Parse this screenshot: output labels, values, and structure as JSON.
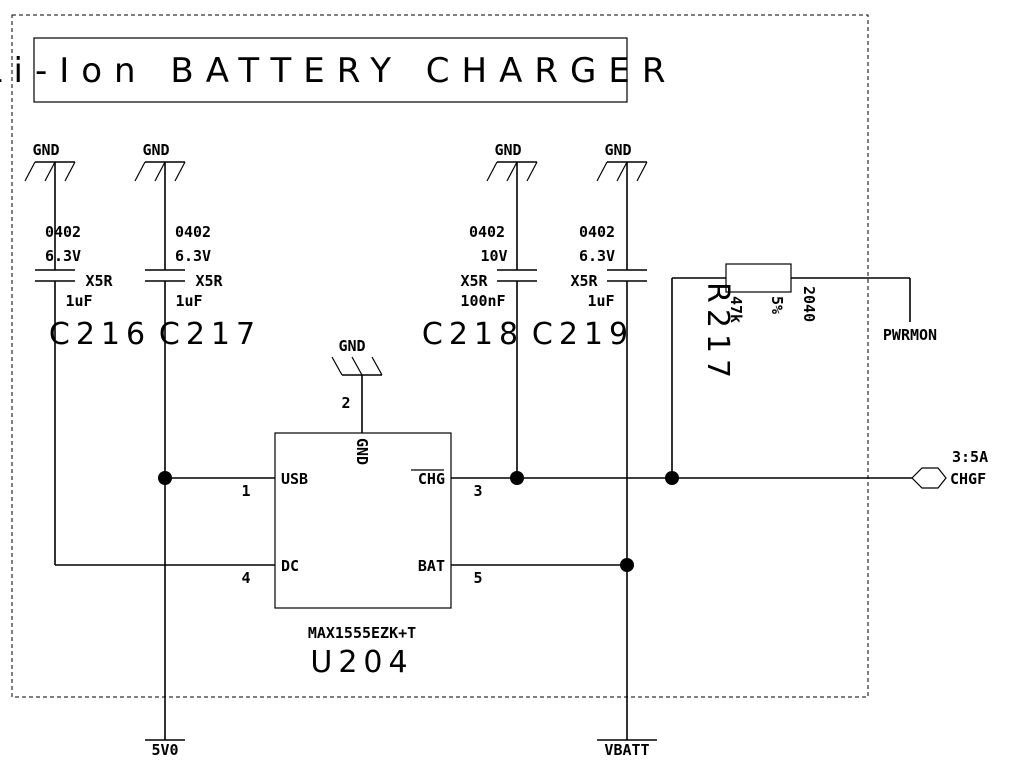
{
  "title": "Li-Ion BATTERY CHARGER",
  "gnd_label": "GND",
  "capacitors": [
    {
      "ref": "C216",
      "value": "1uF",
      "dielectric": "X5R",
      "voltage": "6.3V",
      "package": "0402"
    },
    {
      "ref": "C217",
      "value": "1uF",
      "dielectric": "X5R",
      "voltage": "6.3V",
      "package": "0402"
    },
    {
      "ref": "C218",
      "value": "100nF",
      "dielectric": "X5R",
      "voltage": "10V",
      "package": "0402"
    },
    {
      "ref": "C219",
      "value": "1uF",
      "dielectric": "X5R",
      "voltage": "6.3V",
      "package": "0402"
    }
  ],
  "resistor": {
    "ref": "R217",
    "value": "47k",
    "tolerance": "5%",
    "package": "2040"
  },
  "ic": {
    "ref": "U204",
    "part": "MAX1555EZK+T",
    "pins": {
      "usb": {
        "name": "USB",
        "num": "1"
      },
      "dc": {
        "name": "DC",
        "num": "4"
      },
      "gnd": {
        "name": "GND",
        "num": "2"
      },
      "chg": {
        "name": "CHG",
        "num": "3"
      },
      "bat": {
        "name": "BAT",
        "num": "5"
      }
    }
  },
  "nets": {
    "pwrmon": "PWRMON",
    "chgf": "CHGF",
    "chgf_sheet": "3:5A",
    "v50": "5V0",
    "vbatt": "VBATT"
  }
}
